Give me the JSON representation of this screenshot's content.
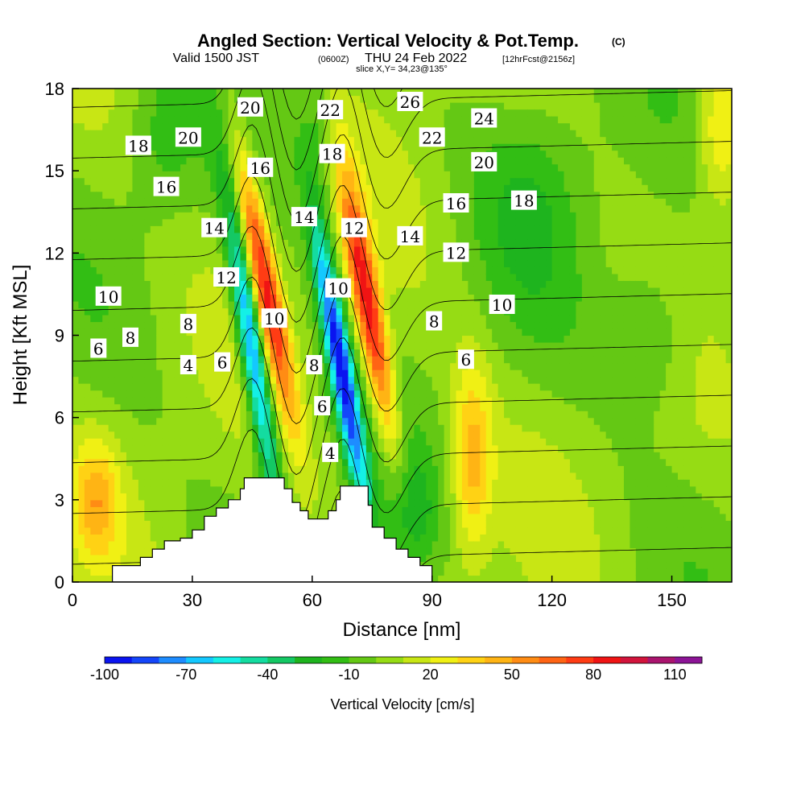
{
  "chart_data": {
    "type": "heatmap",
    "title": "Angled Section: Vertical Velocity & Pot.Temp.",
    "title_unit": "(C)",
    "subtitle_main": "Valid 1500 JST",
    "subtitle_utc": "(0600Z)",
    "subtitle_date": "THU 24 Feb 2022",
    "subtitle_fcst": "[12hrFcst@2156z]",
    "slice_label": "slice X,Y= 34,23@135°",
    "xlabel": "Distance [nm]",
    "ylabel": "Height [Kft MSL]",
    "xlim": [
      0,
      165
    ],
    "ylim": [
      0,
      18
    ],
    "x_ticks": [
      "0",
      "30",
      "60",
      "90",
      "120",
      "150"
    ],
    "y_ticks": [
      "0",
      "3",
      "6",
      "9",
      "12",
      "15",
      "18"
    ],
    "colorbar": {
      "label": "Vertical Velocity [cm/s]",
      "tick_labels": [
        "-100",
        "-70",
        "-40",
        "-10",
        "20",
        "50",
        "80",
        "110"
      ],
      "levels": [
        -100,
        -90,
        -80,
        -70,
        -60,
        -50,
        -40,
        -30,
        -20,
        -10,
        0,
        10,
        20,
        30,
        40,
        50,
        60,
        70,
        80,
        90,
        100,
        110,
        120
      ],
      "colors": [
        "#0a14f0",
        "#1446fa",
        "#1e8cff",
        "#14c8ff",
        "#14f0e6",
        "#14dca0",
        "#14c864",
        "#1eb41e",
        "#32be14",
        "#64c814",
        "#96dc14",
        "#c8e614",
        "#f0f014",
        "#ffd214",
        "#ffb414",
        "#ff8c14",
        "#ff6414",
        "#ff3c14",
        "#f01414",
        "#d2143c",
        "#aa146e",
        "#8c1496"
      ]
    },
    "background_velocity": 3,
    "velocity_features": [
      {
        "x": 48,
        "y": 11.0,
        "sx": 2.5,
        "sy": 3.5,
        "tilt": -0.45,
        "value": 80
      },
      {
        "x": 45,
        "y": 8.5,
        "sx": 2.2,
        "sy": 4.0,
        "tilt": -0.35,
        "value": -85
      },
      {
        "x": 67,
        "y": 8.0,
        "sx": 2.2,
        "sy": 4.0,
        "tilt": -0.4,
        "value": -95
      },
      {
        "x": 74,
        "y": 10.0,
        "sx": 2.5,
        "sy": 3.5,
        "tilt": -0.4,
        "value": 85
      },
      {
        "x": 100,
        "y": 4.5,
        "sx": 3.5,
        "sy": 2.5,
        "tilt": 0,
        "value": 40
      },
      {
        "x": 6,
        "y": 3.0,
        "sx": 4,
        "sy": 1.5,
        "tilt": 0,
        "value": 35
      },
      {
        "x": 162,
        "y": 16.5,
        "sx": 4,
        "sy": 2,
        "tilt": 0,
        "value": 30
      },
      {
        "x": 85,
        "y": 2.5,
        "sx": 4,
        "sy": 1.5,
        "tilt": 0,
        "value": -25
      },
      {
        "x": 145,
        "y": 9.0,
        "sx": 8,
        "sy": 2,
        "tilt": 0,
        "value": -20
      },
      {
        "x": 115,
        "y": 14.0,
        "sx": 10,
        "sy": 3,
        "tilt": 0,
        "value": -18
      },
      {
        "x": 22,
        "y": 16.0,
        "sx": 6,
        "sy": 2,
        "tilt": 0,
        "value": -15
      },
      {
        "x": 62,
        "y": 16.5,
        "sx": 3,
        "sy": 2,
        "tilt": -0.3,
        "value": -20
      }
    ],
    "terrain": [
      [
        10,
        0.6
      ],
      [
        16,
        0.6
      ],
      [
        17,
        0.9
      ],
      [
        20,
        1.2
      ],
      [
        23,
        1.5
      ],
      [
        27,
        1.6
      ],
      [
        30,
        1.9
      ],
      [
        33,
        2.4
      ],
      [
        36,
        2.7
      ],
      [
        39,
        3.0
      ],
      [
        42,
        3.4
      ],
      [
        43,
        3.8
      ],
      [
        51,
        3.8
      ],
      [
        53,
        3.4
      ],
      [
        55,
        2.9
      ],
      [
        57,
        2.6
      ],
      [
        59,
        2.3
      ],
      [
        62,
        2.3
      ],
      [
        64,
        2.6
      ],
      [
        66,
        3.0
      ],
      [
        67,
        3.5
      ],
      [
        72,
        3.5
      ],
      [
        74,
        2.8
      ],
      [
        75,
        2.0
      ],
      [
        78,
        1.6
      ],
      [
        81,
        1.2
      ],
      [
        84,
        0.9
      ],
      [
        87,
        0.6
      ],
      [
        90,
        0.6
      ]
    ],
    "contour_levels": [
      4,
      6,
      8,
      10,
      12,
      14,
      16,
      18,
      20,
      22,
      24,
      26
    ],
    "contour_labels": [
      {
        "text": "6",
        "x": 6.5,
        "y": 8.5
      },
      {
        "text": "8",
        "x": 14.5,
        "y": 8.9
      },
      {
        "text": "10",
        "x": 9,
        "y": 10.4
      },
      {
        "text": "8",
        "x": 29,
        "y": 9.4
      },
      {
        "text": "4",
        "x": 29,
        "y": 7.9
      },
      {
        "text": "6",
        "x": 37.5,
        "y": 8.0
      },
      {
        "text": "12",
        "x": 38.5,
        "y": 11.1
      },
      {
        "text": "14",
        "x": 35.5,
        "y": 12.9
      },
      {
        "text": "16",
        "x": 23.5,
        "y": 14.4
      },
      {
        "text": "18",
        "x": 16.5,
        "y": 15.9
      },
      {
        "text": "20",
        "x": 29,
        "y": 16.2
      },
      {
        "text": "20",
        "x": 44.5,
        "y": 17.3
      },
      {
        "text": "16",
        "x": 47,
        "y": 15.1
      },
      {
        "text": "10",
        "x": 50.5,
        "y": 9.6
      },
      {
        "text": "14",
        "x": 58,
        "y": 13.3
      },
      {
        "text": "8",
        "x": 60.5,
        "y": 7.9
      },
      {
        "text": "6",
        "x": 62.5,
        "y": 6.4
      },
      {
        "text": "4",
        "x": 64.5,
        "y": 4.7
      },
      {
        "text": "10",
        "x": 66.5,
        "y": 10.7
      },
      {
        "text": "12",
        "x": 70.5,
        "y": 12.9
      },
      {
        "text": "18",
        "x": 65,
        "y": 15.6
      },
      {
        "text": "22",
        "x": 64.5,
        "y": 17.2
      },
      {
        "text": "26",
        "x": 84.5,
        "y": 17.5
      },
      {
        "text": "22",
        "x": 90,
        "y": 16.2
      },
      {
        "text": "24",
        "x": 103,
        "y": 16.9
      },
      {
        "text": "20",
        "x": 103,
        "y": 15.3
      },
      {
        "text": "16",
        "x": 96,
        "y": 13.8
      },
      {
        "text": "18",
        "x": 113,
        "y": 13.9
      },
      {
        "text": "14",
        "x": 84.5,
        "y": 12.6
      },
      {
        "text": "12",
        "x": 96,
        "y": 12.0
      },
      {
        "text": "10",
        "x": 107.5,
        "y": 10.1
      },
      {
        "text": "8",
        "x": 90.5,
        "y": 9.5
      },
      {
        "text": "6",
        "x": 98.5,
        "y": 8.1
      }
    ]
  }
}
